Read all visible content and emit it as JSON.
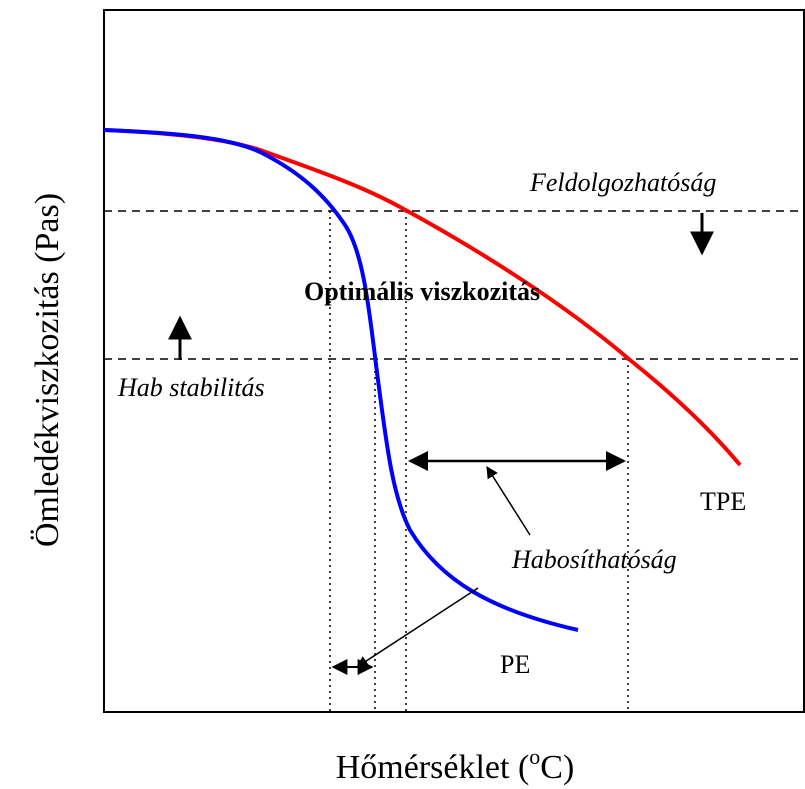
{
  "axes": {
    "y_label": "Ömledékviszkozitás (Pas)",
    "x_label": {
      "text": "Hőmérséklet (",
      "superscript": "o",
      "unit": "C)"
    }
  },
  "annotations": {
    "processability": "Feldolgozhatóság",
    "optimal": "Optimális viszkozitás",
    "foam_stability": "Hab stabilitás",
    "foamability": "Habosíthatóság"
  },
  "curves": {
    "tpe": "TPE",
    "pe": "PE"
  }
}
